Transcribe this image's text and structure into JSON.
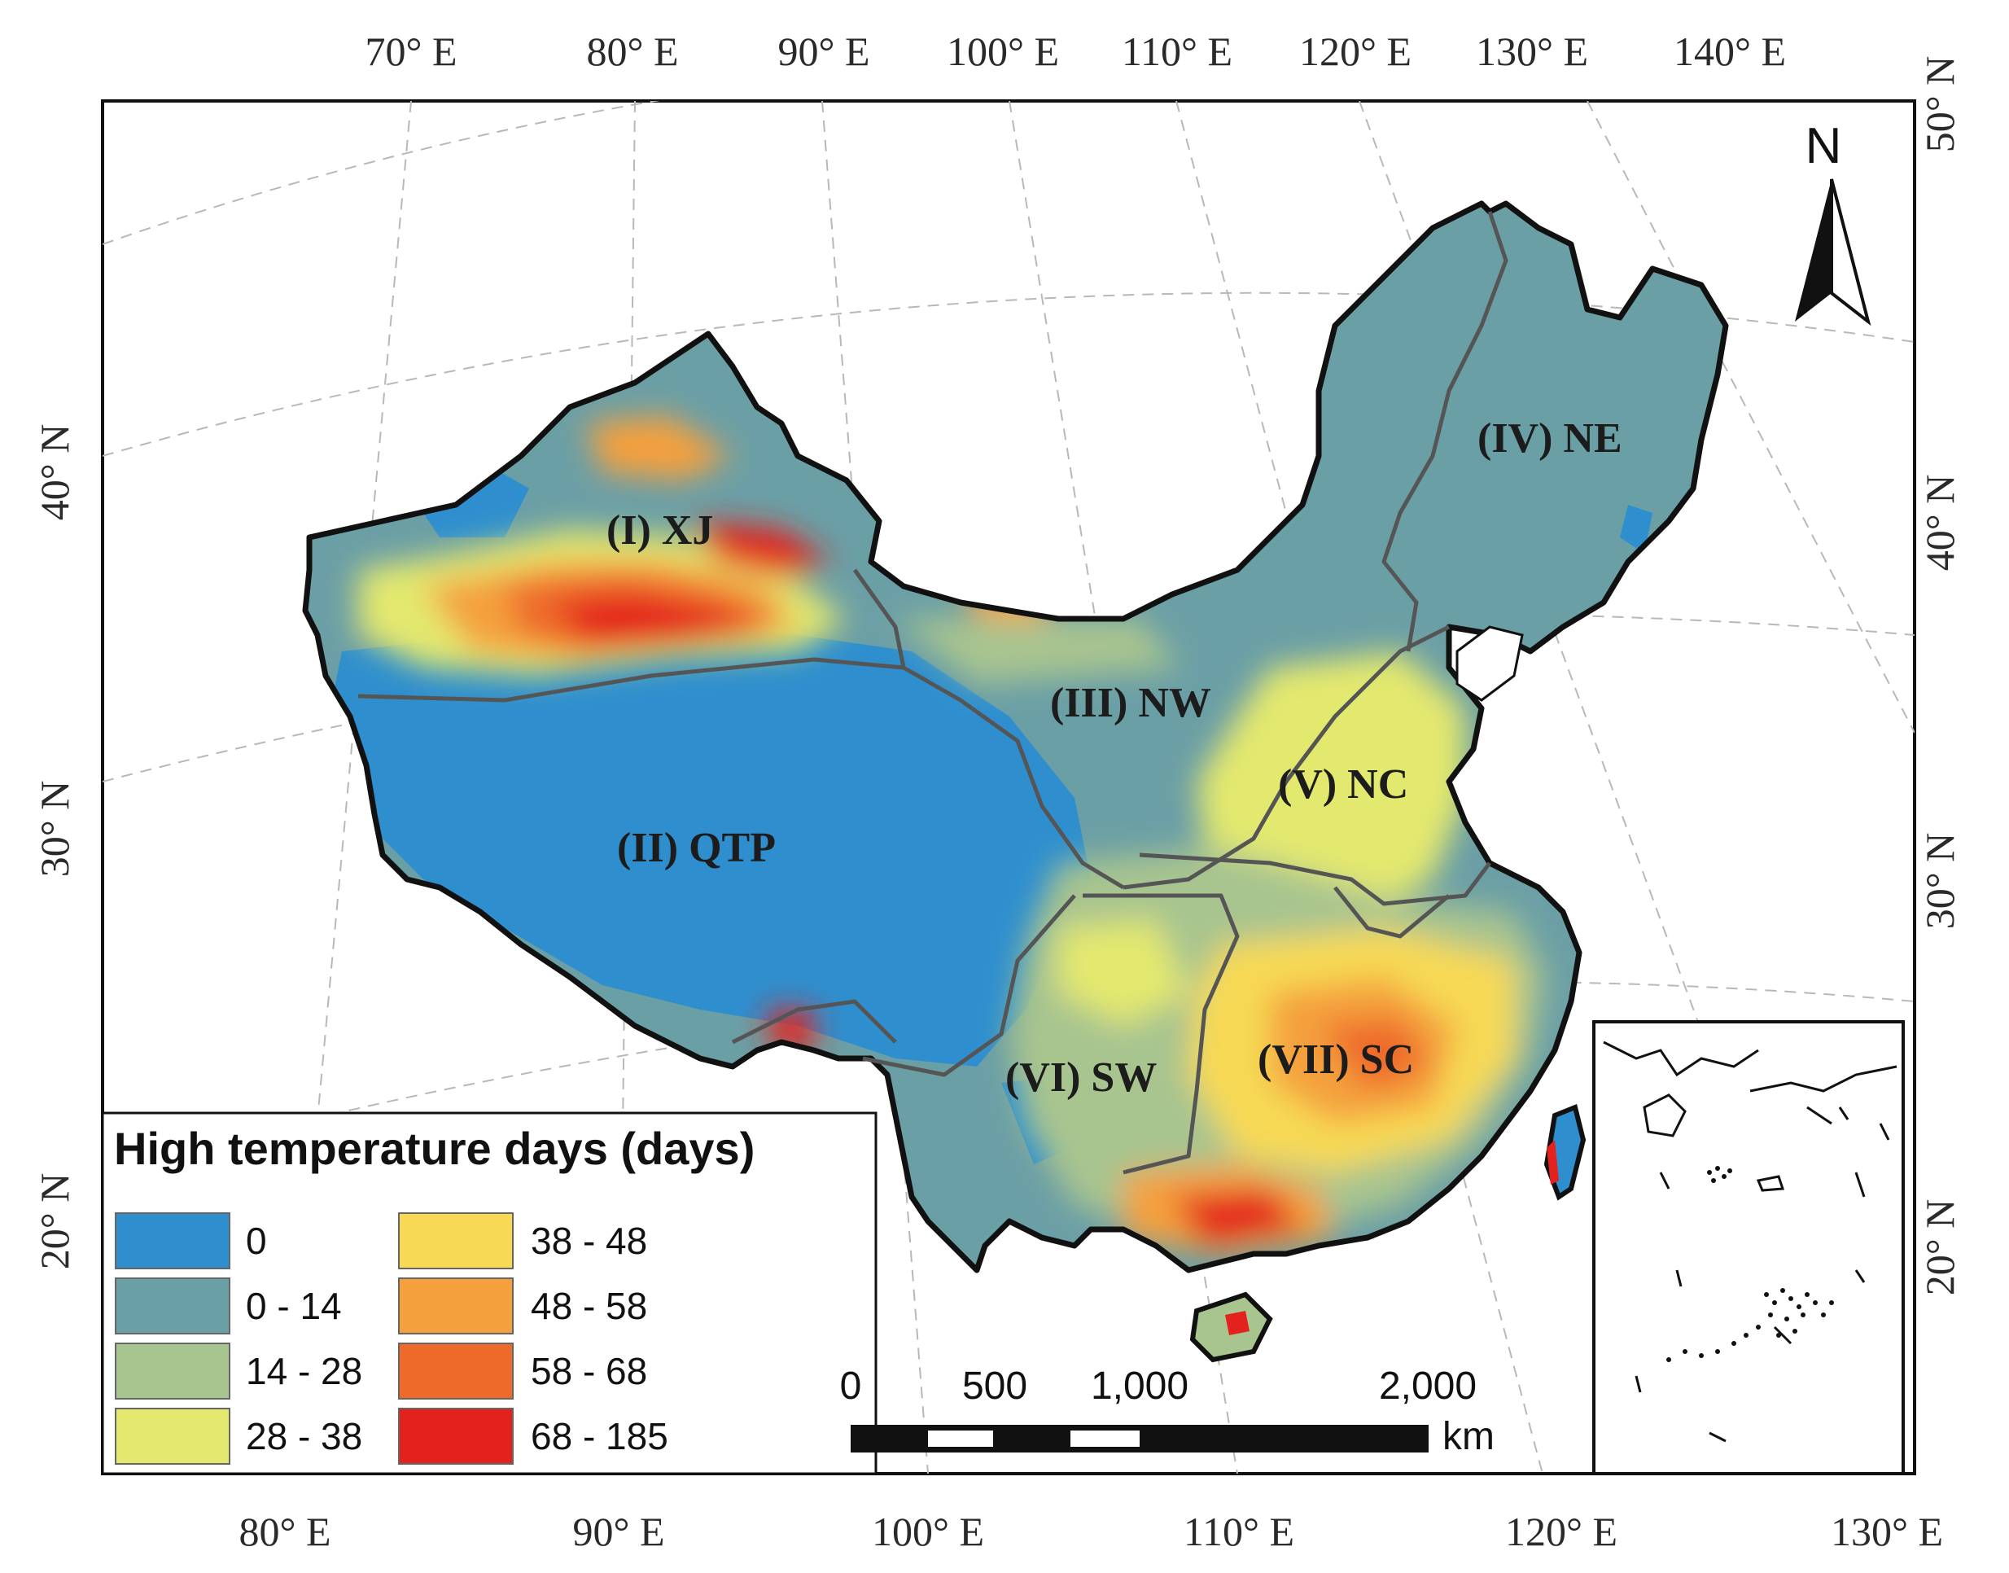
{
  "map": {
    "top_longitudes": [
      "70° E",
      "80° E",
      "90° E",
      "100° E",
      "110° E",
      "120° E",
      "130° E",
      "140° E"
    ],
    "bottom_longitudes": [
      "80° E",
      "90° E",
      "100° E",
      "110° E",
      "120° E",
      "130° E"
    ],
    "left_latitudes": [
      "40° N",
      "30° N",
      "20° N"
    ],
    "right_latitudes": [
      "50° N",
      "40° N",
      "30° N",
      "20° N"
    ],
    "regions": [
      {
        "id": "xj",
        "label": "(I) XJ"
      },
      {
        "id": "qtp",
        "label": "(II) QTP"
      },
      {
        "id": "nw",
        "label": "(III) NW"
      },
      {
        "id": "ne",
        "label": "(IV) NE"
      },
      {
        "id": "nc",
        "label": "(V) NC"
      },
      {
        "id": "sw",
        "label": "(VI) SW"
      },
      {
        "id": "sc",
        "label": "(VII) SC"
      }
    ],
    "north_arrow": "N",
    "legend": {
      "title": "High temperature days (days)",
      "classes": [
        {
          "label": "0",
          "color": "#2f8fce"
        },
        {
          "label": "0 - 14",
          "color": "#6b9fa6"
        },
        {
          "label": "14 - 28",
          "color": "#a8c48f"
        },
        {
          "label": "28 - 38",
          "color": "#e3e86e"
        },
        {
          "label": "38 - 48",
          "color": "#f7d955"
        },
        {
          "label": "48 - 58",
          "color": "#f4a03c"
        },
        {
          "label": "58 - 68",
          "color": "#ee6a2a"
        },
        {
          "label": "68 - 185",
          "color": "#e3221d"
        }
      ]
    },
    "scale_bar": {
      "ticks": [
        "0",
        "500",
        "1,000",
        "2,000"
      ],
      "unit": "km"
    }
  }
}
